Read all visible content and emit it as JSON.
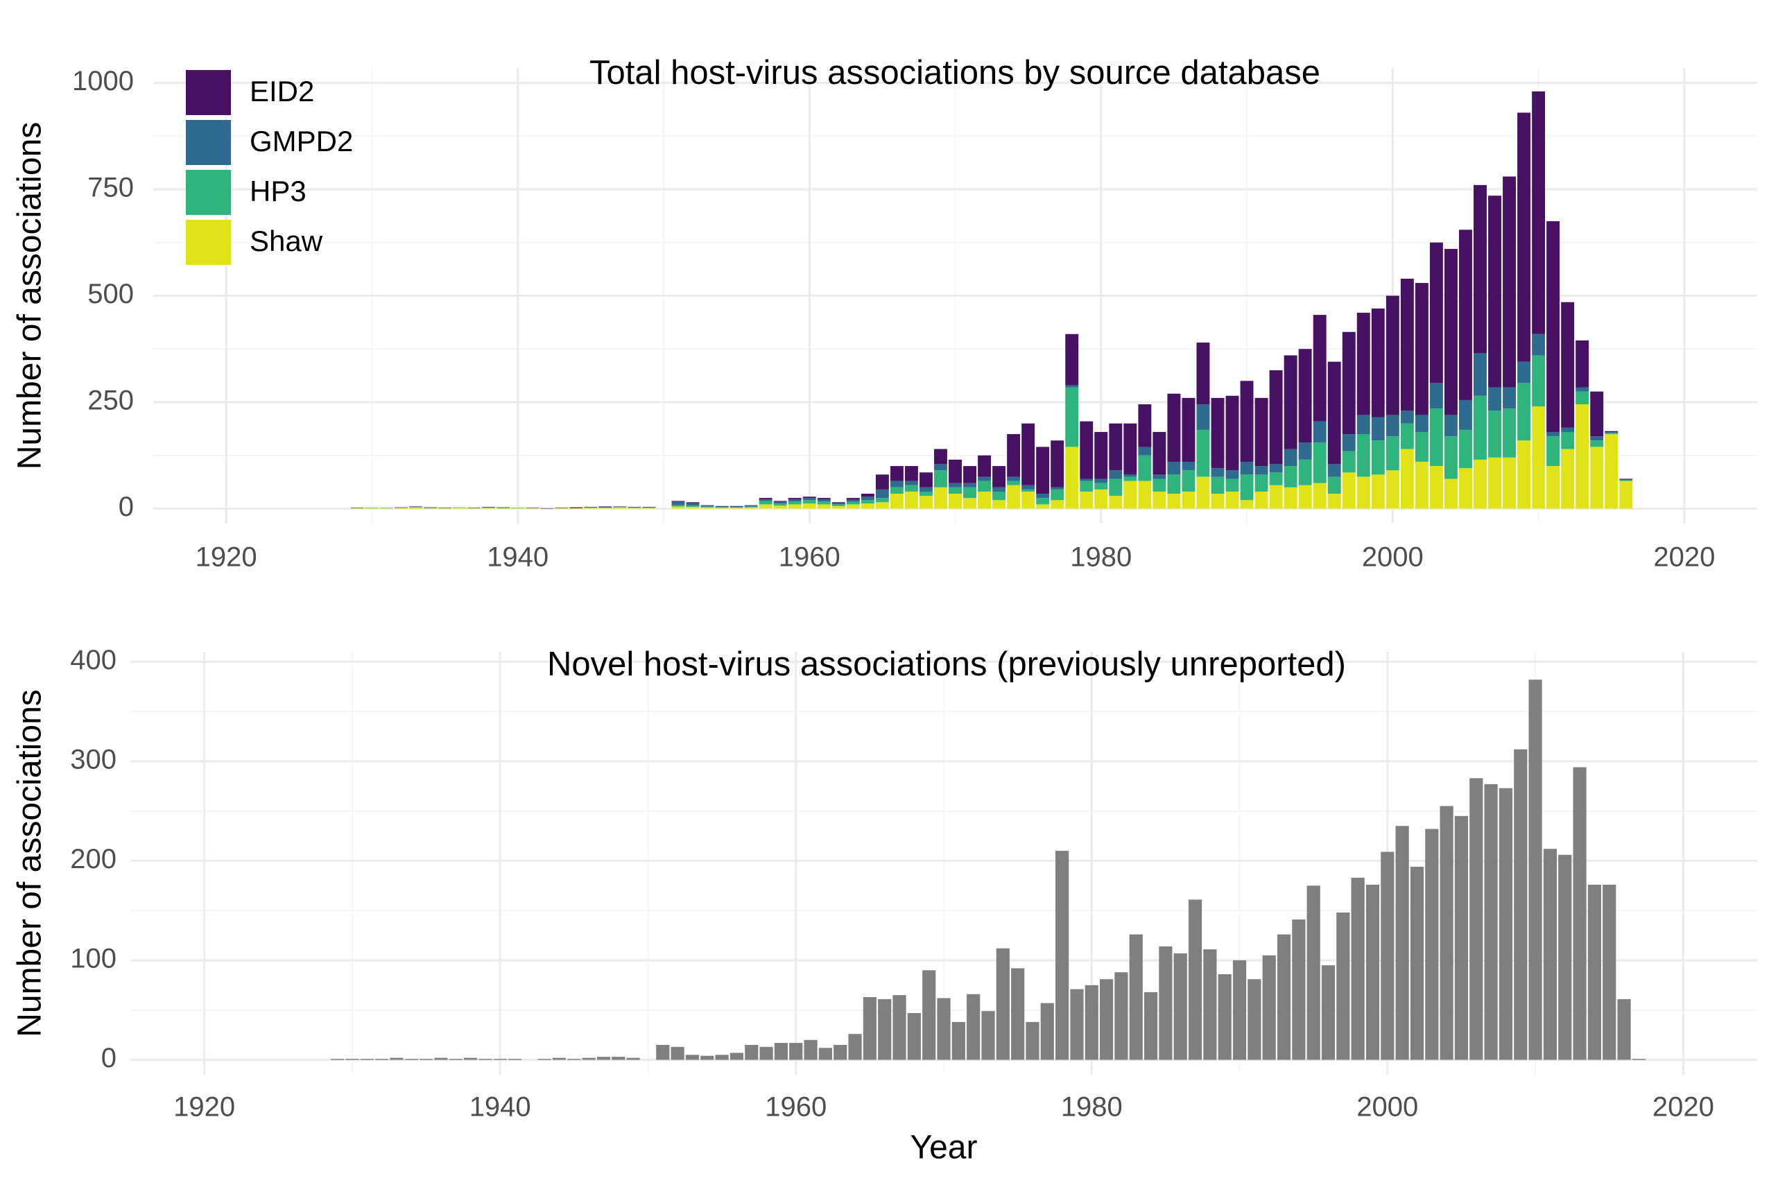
{
  "chart_data": [
    {
      "type": "stacked_bar",
      "title": "Total host-virus associations by source database",
      "xlabel": null,
      "ylabel": "Number of associations",
      "x": [
        1929,
        1930,
        1931,
        1932,
        1933,
        1934,
        1935,
        1936,
        1937,
        1938,
        1939,
        1940,
        1941,
        1942,
        1943,
        1944,
        1945,
        1946,
        1947,
        1948,
        1949,
        1950,
        1951,
        1952,
        1953,
        1954,
        1955,
        1956,
        1957,
        1958,
        1959,
        1960,
        1961,
        1962,
        1963,
        1964,
        1965,
        1966,
        1967,
        1968,
        1969,
        1970,
        1971,
        1972,
        1973,
        1974,
        1975,
        1976,
        1977,
        1978,
        1979,
        1980,
        1981,
        1982,
        1983,
        1984,
        1985,
        1986,
        1987,
        1988,
        1989,
        1990,
        1991,
        1992,
        1993,
        1994,
        1995,
        1996,
        1997,
        1998,
        1999,
        2000,
        2001,
        2002,
        2003,
        2004,
        2005,
        2006,
        2007,
        2008,
        2009,
        2010,
        2011,
        2012,
        2013,
        2014,
        2015,
        2016,
        2017
      ],
      "series": [
        {
          "name": "EID2",
          "color": "#471164",
          "values": [
            1,
            0,
            0,
            1,
            1,
            1,
            1,
            0,
            1,
            1,
            1,
            0,
            1,
            1,
            1,
            2,
            1,
            2,
            1,
            1,
            1,
            0,
            2,
            2,
            1,
            1,
            1,
            1,
            3,
            2,
            3,
            3,
            3,
            2,
            4,
            7,
            35,
            35,
            35,
            35,
            35,
            55,
            40,
            50,
            50,
            100,
            145,
            110,
            110,
            120,
            135,
            110,
            110,
            120,
            100,
            100,
            160,
            150,
            145,
            165,
            175,
            190,
            160,
            220,
            220,
            220,
            250,
            240,
            240,
            240,
            255,
            280,
            310,
            310,
            330,
            390,
            400,
            395,
            450,
            495,
            585,
            570,
            495,
            295,
            110,
            105,
            2,
            2,
            0
          ]
        },
        {
          "name": "GMPD2",
          "color": "#2f6b8e",
          "values": [
            0,
            0,
            0,
            0,
            0,
            0,
            0,
            0,
            0,
            0,
            0,
            0,
            0,
            0,
            0,
            0,
            0,
            0,
            0,
            0,
            0,
            0,
            8,
            6,
            2,
            1,
            1,
            2,
            4,
            4,
            5,
            5,
            5,
            3,
            5,
            8,
            20,
            15,
            10,
            10,
            15,
            10,
            10,
            10,
            10,
            10,
            10,
            10,
            5,
            5,
            5,
            10,
            20,
            5,
            20,
            10,
            30,
            20,
            60,
            20,
            20,
            30,
            20,
            20,
            40,
            40,
            50,
            30,
            40,
            45,
            55,
            50,
            30,
            40,
            60,
            50,
            70,
            100,
            55,
            50,
            50,
            50,
            10,
            10,
            10,
            10,
            2,
            1,
            0
          ]
        },
        {
          "name": "HP3",
          "color": "#2fb47c",
          "values": [
            0,
            1,
            1,
            0,
            1,
            1,
            0,
            1,
            0,
            1,
            1,
            1,
            0,
            0,
            0,
            0,
            1,
            1,
            1,
            1,
            1,
            0,
            3,
            3,
            2,
            2,
            2,
            2,
            8,
            5,
            7,
            8,
            7,
            4,
            6,
            8,
            10,
            15,
            15,
            10,
            40,
            15,
            25,
            25,
            20,
            10,
            5,
            15,
            25,
            140,
            25,
            15,
            40,
            10,
            60,
            30,
            45,
            50,
            110,
            40,
            30,
            60,
            40,
            30,
            50,
            60,
            95,
            40,
            50,
            100,
            80,
            80,
            60,
            70,
            135,
            100,
            90,
            150,
            110,
            115,
            135,
            120,
            70,
            40,
            30,
            15,
            3,
            2,
            0
          ]
        },
        {
          "name": "Shaw",
          "color": "#dfe318",
          "values": [
            1,
            1,
            1,
            2,
            3,
            1,
            1,
            2,
            1,
            2,
            1,
            1,
            1,
            0,
            1,
            1,
            2,
            2,
            3,
            2,
            2,
            0,
            5,
            4,
            3,
            2,
            2,
            3,
            10,
            7,
            10,
            12,
            10,
            6,
            10,
            12,
            15,
            35,
            40,
            30,
            50,
            35,
            25,
            40,
            20,
            55,
            40,
            10,
            20,
            145,
            40,
            45,
            30,
            65,
            65,
            40,
            35,
            40,
            75,
            35,
            40,
            20,
            40,
            55,
            50,
            55,
            60,
            35,
            85,
            75,
            80,
            90,
            140,
            110,
            100,
            70,
            95,
            115,
            120,
            120,
            160,
            240,
            100,
            140,
            245,
            145,
            175,
            65,
            0
          ]
        }
      ],
      "xlim": [
        1915,
        2025
      ],
      "xticks": [
        1920,
        1940,
        1960,
        1980,
        2000,
        2020
      ],
      "minor_xticks": [
        1930,
        1950,
        1970,
        1990,
        2010
      ],
      "ylim": [
        -35,
        1035
      ],
      "yticks": [
        0,
        250,
        500,
        750,
        1000
      ],
      "minor_yticks": [
        125,
        375,
        625,
        875
      ],
      "grid": true,
      "legend": "top-left"
    },
    {
      "type": "bar",
      "title": "Novel host-virus associations (previously unreported)",
      "xlabel": "Year",
      "ylabel": "Number of associations",
      "x": [
        1929,
        1930,
        1931,
        1932,
        1933,
        1934,
        1935,
        1936,
        1937,
        1938,
        1939,
        1940,
        1941,
        1942,
        1943,
        1944,
        1945,
        1946,
        1947,
        1948,
        1949,
        1950,
        1951,
        1952,
        1953,
        1954,
        1955,
        1956,
        1957,
        1958,
        1959,
        1960,
        1961,
        1962,
        1963,
        1964,
        1965,
        1966,
        1967,
        1968,
        1969,
        1970,
        1971,
        1972,
        1973,
        1974,
        1975,
        1976,
        1977,
        1978,
        1979,
        1980,
        1981,
        1982,
        1983,
        1984,
        1985,
        1986,
        1987,
        1988,
        1989,
        1990,
        1991,
        1992,
        1993,
        1994,
        1995,
        1996,
        1997,
        1998,
        1999,
        2000,
        2001,
        2002,
        2003,
        2004,
        2005,
        2006,
        2007,
        2008,
        2009,
        2010,
        2011,
        2012,
        2013,
        2014,
        2015,
        2016,
        2017
      ],
      "values": [
        1,
        1,
        1,
        1,
        2,
        1,
        1,
        2,
        1,
        2,
        1,
        1,
        1,
        0,
        1,
        2,
        1,
        2,
        3,
        3,
        2,
        0,
        15,
        13,
        5,
        4,
        5,
        7,
        15,
        13,
        17,
        17,
        20,
        12,
        15,
        26,
        63,
        61,
        65,
        47,
        90,
        62,
        38,
        66,
        49,
        112,
        92,
        38,
        57,
        210,
        71,
        75,
        81,
        88,
        126,
        68,
        114,
        107,
        161,
        111,
        86,
        100,
        81,
        105,
        126,
        141,
        175,
        95,
        148,
        183,
        176,
        209,
        235,
        194,
        232,
        255,
        245,
        283,
        277,
        273,
        312,
        382,
        212,
        206,
        294,
        176,
        176,
        61,
        1
      ],
      "color": "#7f7f7f",
      "xlim": [
        1915,
        2025
      ],
      "xticks": [
        1920,
        1940,
        1960,
        1980,
        2000,
        2020
      ],
      "minor_xticks": [
        1930,
        1950,
        1970,
        1990,
        2010
      ],
      "ylim": [
        -15,
        410
      ],
      "yticks": [
        0,
        100,
        200,
        300,
        400
      ],
      "minor_yticks": [
        50,
        150,
        250,
        350
      ],
      "grid": true
    }
  ]
}
